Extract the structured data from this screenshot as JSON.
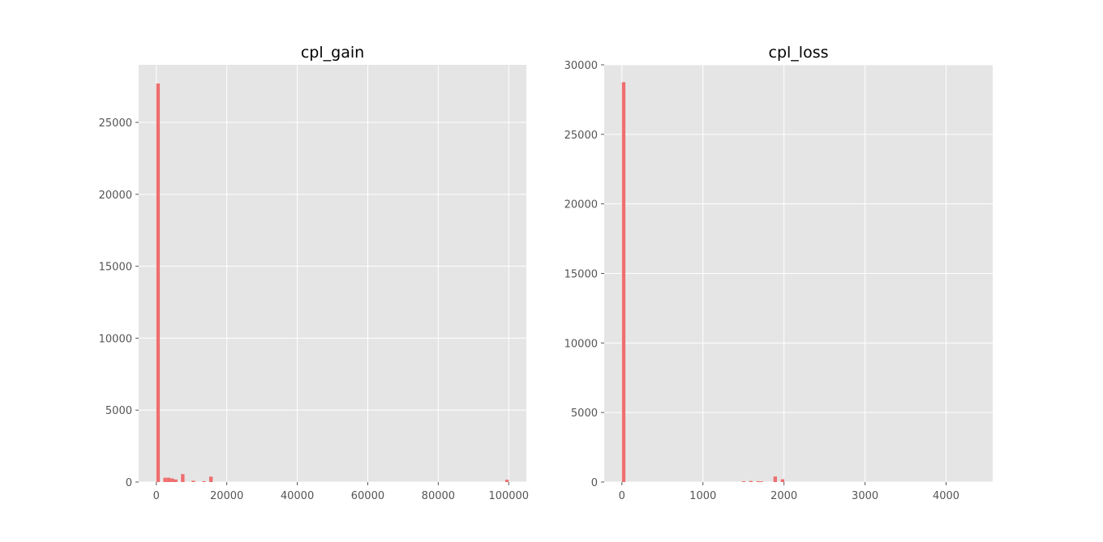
{
  "chart_data": [
    {
      "type": "bar",
      "title": "cpl_gain",
      "xlabel": "",
      "ylabel": "",
      "xlim": [
        -5000,
        105000
      ],
      "ylim": [
        0,
        29000
      ],
      "xticks": [
        0,
        20000,
        40000,
        60000,
        80000,
        100000
      ],
      "yticks": [
        0,
        5000,
        10000,
        15000,
        20000,
        25000
      ],
      "grid": true,
      "bar_color": "#ee6e6e",
      "bin_width": 1000,
      "bins": [
        {
          "x": 0,
          "count": 27700
        },
        {
          "x": 2000,
          "count": 300
        },
        {
          "x": 3000,
          "count": 300
        },
        {
          "x": 4000,
          "count": 250
        },
        {
          "x": 5000,
          "count": 180
        },
        {
          "x": 7000,
          "count": 550
        },
        {
          "x": 10000,
          "count": 90
        },
        {
          "x": 13000,
          "count": 60
        },
        {
          "x": 15000,
          "count": 380
        },
        {
          "x": 99000,
          "count": 160
        }
      ]
    },
    {
      "type": "bar",
      "title": "cpl_loss",
      "xlabel": "",
      "ylabel": "",
      "xlim": [
        -218,
        4575
      ],
      "ylim": [
        0,
        30000
      ],
      "xticks": [
        0,
        1000,
        2000,
        3000,
        4000
      ],
      "yticks": [
        0,
        5000,
        10000,
        15000,
        20000,
        25000,
        30000
      ],
      "grid": true,
      "bar_color": "#ee6e6e",
      "bin_width": 43.5,
      "bins": [
        {
          "x": 0,
          "count": 28750
        },
        {
          "x": 1480,
          "count": 60
        },
        {
          "x": 1570,
          "count": 80
        },
        {
          "x": 1660,
          "count": 60
        },
        {
          "x": 1700,
          "count": 50
        },
        {
          "x": 1870,
          "count": 400
        },
        {
          "x": 1960,
          "count": 200
        }
      ]
    }
  ]
}
